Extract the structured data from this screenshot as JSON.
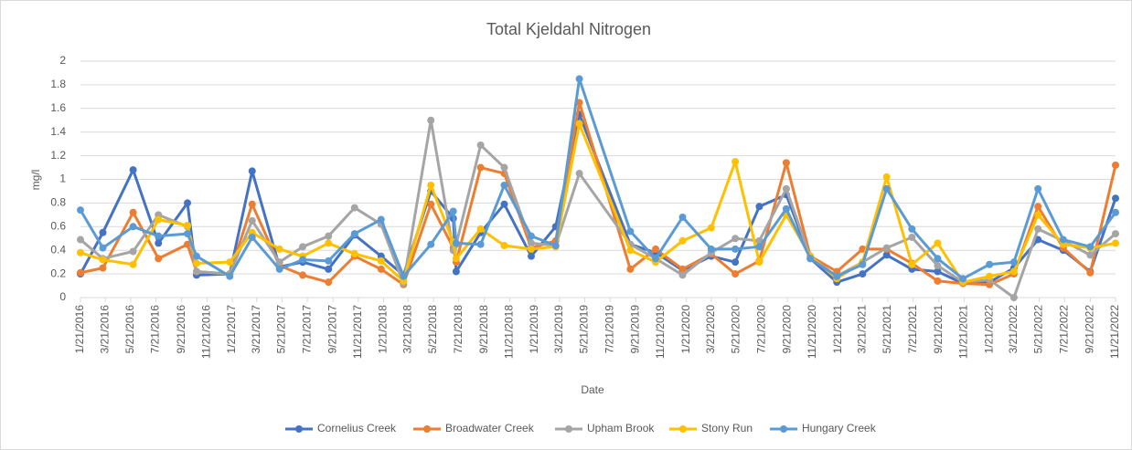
{
  "chart_data": {
    "type": "line",
    "title": "Total Kjeldahl Nitrogen",
    "x_label": "Date",
    "y_label": "mg/l",
    "x": [
      "1/21/2016",
      "3/15/2016",
      "5/27/2016",
      "7/27/2016",
      "10/5/2016",
      "10/27/2016",
      "1/15/2017",
      "3/10/2017",
      "5/15/2017",
      "7/10/2017",
      "9/10/2017",
      "11/12/2017",
      "1/15/2018",
      "3/10/2018",
      "5/15/2018",
      "7/8/2018",
      "7/15/2018",
      "9/12/2018",
      "11/8/2018",
      "1/12/2019",
      "3/12/2019",
      "5/8/2019",
      "9/8/2019",
      "11/8/2019",
      "1/12/2020",
      "3/21/2020",
      "5/18/2020",
      "7/15/2020",
      "9/18/2020",
      "11/15/2020",
      "1/18/2021",
      "3/21/2021",
      "5/18/2021",
      "7/18/2021",
      "9/18/2021",
      "11/18/2021",
      "1/21/2022",
      "3/21/2022",
      "5/18/2022",
      "7/18/2022",
      "9/21/2022",
      "11/21/2022"
    ],
    "series": [
      {
        "name": "Cornelius Creek",
        "color": "#4472c4",
        "values": [
          0.2,
          0.55,
          1.08,
          0.46,
          0.8,
          0.19,
          0.2,
          1.07,
          0.26,
          0.3,
          0.24,
          0.53,
          0.35,
          0.19,
          0.9,
          0.67,
          0.22,
          0.55,
          0.79,
          0.35,
          0.6,
          1.55,
          0.45,
          0.38,
          0.23,
          0.35,
          0.3,
          0.77,
          0.87,
          0.33,
          0.13,
          0.2,
          0.36,
          0.24,
          0.22,
          0.12,
          0.13,
          0.25,
          0.49,
          0.4,
          0.22,
          0.84
        ]
      },
      {
        "name": "Broadwater Creek",
        "color": "#ed7d31",
        "values": [
          0.21,
          0.25,
          0.72,
          0.33,
          0.45,
          0.22,
          0.2,
          0.79,
          0.27,
          0.19,
          0.13,
          0.35,
          0.24,
          0.11,
          0.79,
          0.42,
          0.3,
          1.1,
          1.05,
          0.42,
          0.48,
          1.65,
          0.24,
          0.41,
          0.24,
          0.37,
          0.2,
          0.31,
          1.14,
          0.35,
          0.22,
          0.41,
          0.41,
          0.29,
          0.14,
          0.12,
          0.11,
          0.2,
          0.77,
          0.42,
          0.21,
          1.12
        ]
      },
      {
        "name": "Upham Brook",
        "color": "#a5a5a5",
        "values": [
          0.49,
          0.33,
          0.39,
          0.7,
          0.6,
          0.22,
          0.2,
          0.65,
          0.3,
          0.43,
          0.52,
          0.76,
          0.62,
          0.12,
          1.5,
          0.4,
          0.45,
          1.29,
          1.1,
          0.46,
          0.44,
          1.05,
          0.45,
          0.33,
          0.19,
          0.38,
          0.5,
          0.48,
          0.92,
          0.34,
          0.18,
          0.3,
          0.42,
          0.51,
          0.27,
          0.13,
          0.15,
          0,
          0.58,
          0.48,
          0.36,
          0.54
        ]
      },
      {
        "name": "Stony Run",
        "color": "#ffc000",
        "values": [
          0.38,
          0.32,
          0.28,
          0.66,
          0.61,
          0.29,
          0.3,
          0.55,
          0.41,
          0.35,
          0.46,
          0.37,
          0.31,
          0.14,
          0.95,
          0.47,
          0.33,
          0.58,
          0.44,
          0.41,
          0.43,
          1.47,
          0.4,
          0.3,
          0.48,
          0.59,
          1.15,
          0.3,
          0.7,
          0.35,
          0.16,
          0.3,
          1.02,
          0.28,
          0.46,
          0.13,
          0.18,
          0.22,
          0.7,
          0.45,
          0.42,
          0.46
        ]
      },
      {
        "name": "Hungary Creek",
        "color": "#5b9bd5",
        "values": [
          0.74,
          0.42,
          0.6,
          0.52,
          0.54,
          0.35,
          0.18,
          0.51,
          0.24,
          0.32,
          0.31,
          0.54,
          0.66,
          0.18,
          0.45,
          0.73,
          0.46,
          0.45,
          0.95,
          0.52,
          0.44,
          1.85,
          0.56,
          0.33,
          0.68,
          0.41,
          0.41,
          0.43,
          0.75,
          0.33,
          0.18,
          0.28,
          0.92,
          0.58,
          0.33,
          0.16,
          0.28,
          0.3,
          0.92,
          0.49,
          0.43,
          0.72
        ]
      }
    ],
    "xlim": [
      "1/21/2016",
      "11/21/2022"
    ],
    "xticks": [
      "1/21/2016",
      "3/21/2016",
      "5/21/2016",
      "7/21/2016",
      "9/21/2016",
      "11/21/2016",
      "1/21/2017",
      "3/21/2017",
      "5/21/2017",
      "7/21/2017",
      "9/21/2017",
      "11/21/2017",
      "1/21/2018",
      "3/21/2018",
      "5/21/2018",
      "7/21/2018",
      "9/21/2018",
      "11/21/2018",
      "1/21/2019",
      "3/21/2019",
      "5/21/2019",
      "7/21/2019",
      "9/21/2019",
      "11/21/2019",
      "1/21/2020",
      "3/21/2020",
      "5/21/2020",
      "7/21/2020",
      "9/21/2020",
      "11/21/2020",
      "1/21/2021",
      "3/21/2021",
      "5/21/2021",
      "7/21/2021",
      "9/21/2021",
      "11/21/2021",
      "1/21/2022",
      "3/21/2022",
      "5/21/2022",
      "7/21/2022",
      "9/21/2022",
      "11/21/2022"
    ],
    "ylim": [
      0,
      2
    ],
    "yticks": [
      0,
      0.2,
      0.4,
      0.6,
      0.8,
      1,
      1.2,
      1.4,
      1.6,
      1.8,
      2
    ],
    "grid": true,
    "legend": "bottom"
  }
}
